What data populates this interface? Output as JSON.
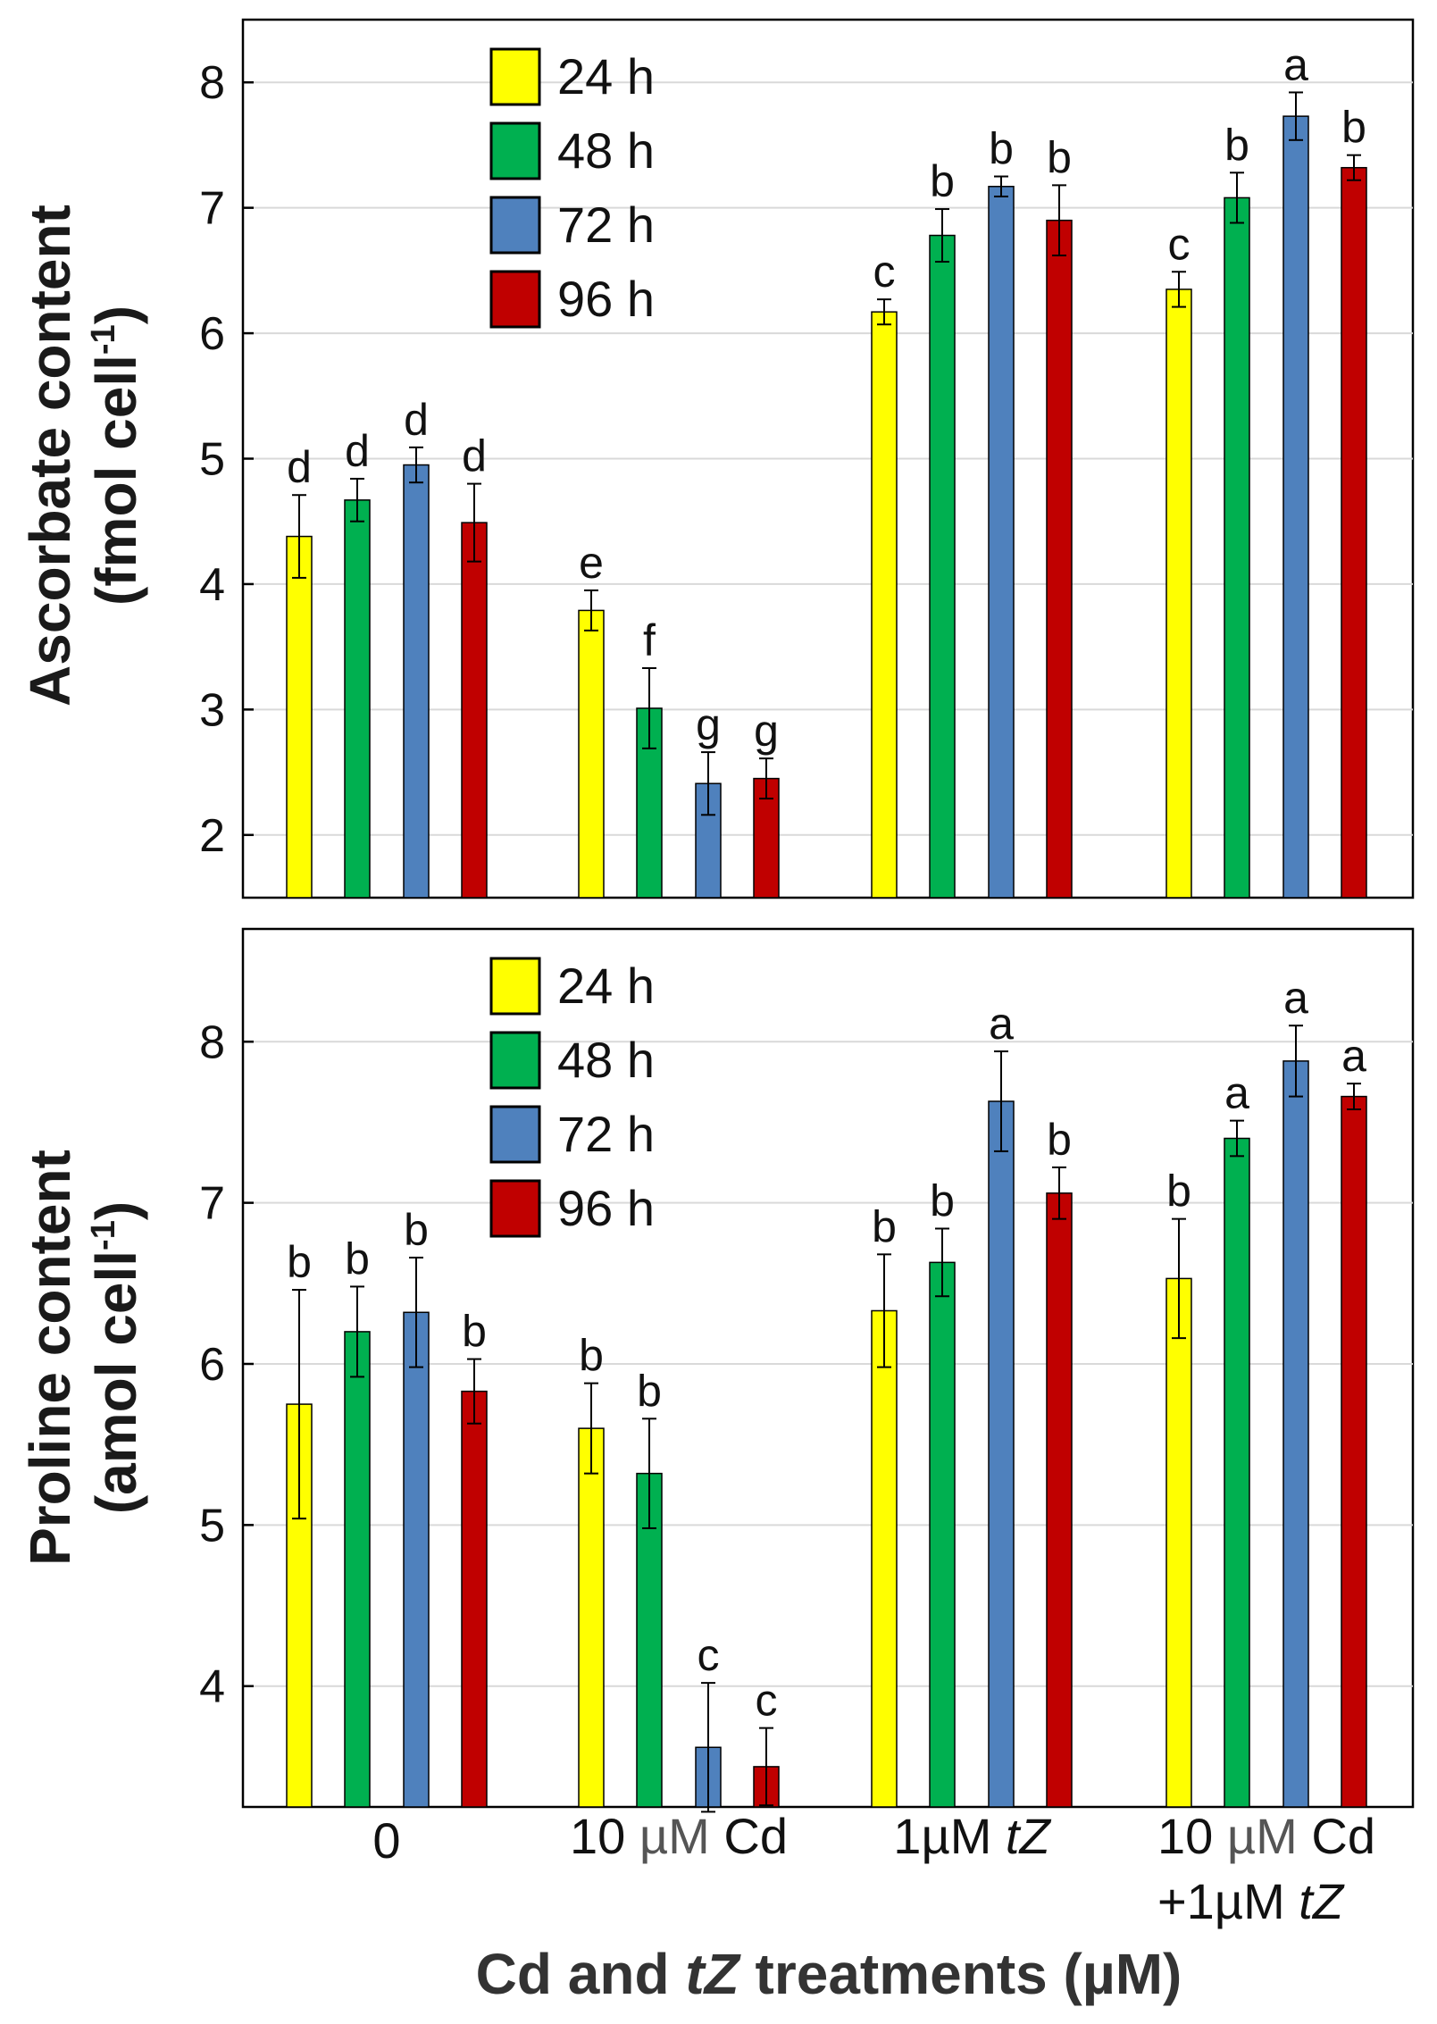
{
  "chart_data": [
    {
      "type": "bar",
      "ylabel_line1": "Ascorbate content",
      "ylabel_line2_main": "(fmol cell",
      "ylabel_line2_sup": "-1",
      "ylabel_line2_end": ")",
      "ylim": [
        1.5,
        8.5
      ],
      "yticks": [
        2,
        3,
        4,
        5,
        6,
        7,
        8
      ],
      "grid": true,
      "legend_position": "top-left",
      "categories": [
        "0",
        "10 µM Cd",
        "1µM tZ",
        "10 µM Cd +1µM tZ"
      ],
      "series": [
        {
          "name": "24 h",
          "color": "#ffff00",
          "values": [
            4.38,
            3.79,
            6.17,
            6.35
          ],
          "errors": [
            0.33,
            0.16,
            0.1,
            0.14
          ],
          "letters": [
            "d",
            "e",
            "c",
            "c"
          ]
        },
        {
          "name": "48 h",
          "color": "#00b050",
          "values": [
            4.67,
            3.01,
            6.78,
            7.08
          ],
          "errors": [
            0.17,
            0.32,
            0.21,
            0.2
          ],
          "letters": [
            "d",
            "f",
            "b",
            "b"
          ]
        },
        {
          "name": "72 h",
          "color": "#4f81bd",
          "values": [
            4.95,
            2.41,
            7.17,
            7.73
          ],
          "errors": [
            0.14,
            0.25,
            0.08,
            0.19
          ],
          "letters": [
            "d",
            "g",
            "b",
            "a"
          ]
        },
        {
          "name": "96 h",
          "color": "#c00000",
          "values": [
            4.49,
            2.45,
            6.9,
            7.32
          ],
          "errors": [
            0.31,
            0.16,
            0.28,
            0.1
          ],
          "letters": [
            "d",
            "g",
            "b",
            "b"
          ]
        }
      ]
    },
    {
      "type": "bar",
      "ylabel_line1": "Proline content",
      "ylabel_line2_main": "(amol cell",
      "ylabel_line2_sup": "-1",
      "ylabel_line2_end": ")",
      "ylim": [
        3.25,
        8.7
      ],
      "yticks": [
        4,
        5,
        6,
        7,
        8
      ],
      "grid": true,
      "legend_position": "top-left",
      "categories": [
        "0",
        "10 µM Cd",
        "1µM tZ",
        "10 µM Cd +1µM tZ"
      ],
      "series": [
        {
          "name": "24 h",
          "color": "#ffff00",
          "values": [
            5.75,
            5.6,
            6.33,
            6.53
          ],
          "errors": [
            0.71,
            0.28,
            0.35,
            0.37
          ],
          "letters": [
            "b",
            "b",
            "b",
            "b"
          ]
        },
        {
          "name": "48 h",
          "color": "#00b050",
          "values": [
            6.2,
            5.32,
            6.63,
            7.4
          ],
          "errors": [
            0.28,
            0.34,
            0.21,
            0.11
          ],
          "letters": [
            "b",
            "b",
            "b",
            "a"
          ]
        },
        {
          "name": "72 h",
          "color": "#4f81bd",
          "values": [
            6.32,
            3.62,
            7.63,
            7.88
          ],
          "errors": [
            0.34,
            0.4,
            0.31,
            0.22
          ],
          "letters": [
            "b",
            "c",
            "a",
            "a"
          ]
        },
        {
          "name": "96 h",
          "color": "#c00000",
          "values": [
            5.83,
            3.5,
            7.06,
            7.66
          ],
          "errors": [
            0.2,
            0.24,
            0.16,
            0.08
          ],
          "letters": [
            "b",
            "c",
            "b",
            "a"
          ]
        }
      ]
    }
  ],
  "x_axis": {
    "cat_labels": [
      {
        "line1": "0"
      },
      {
        "line1_a": "10 ",
        "line1_b": "µM",
        "line1_c": " Cd"
      },
      {
        "line1_a": "1µM ",
        "line1_i": "tZ"
      },
      {
        "line1_a": "10 ",
        "line1_b": "µM",
        "line1_c": " Cd",
        "line2_a": "+1µM ",
        "line2_i": "tZ"
      }
    ],
    "title_a": "Cd and ",
    "title_i": "tZ",
    "title_b": " treatments (µM)"
  }
}
